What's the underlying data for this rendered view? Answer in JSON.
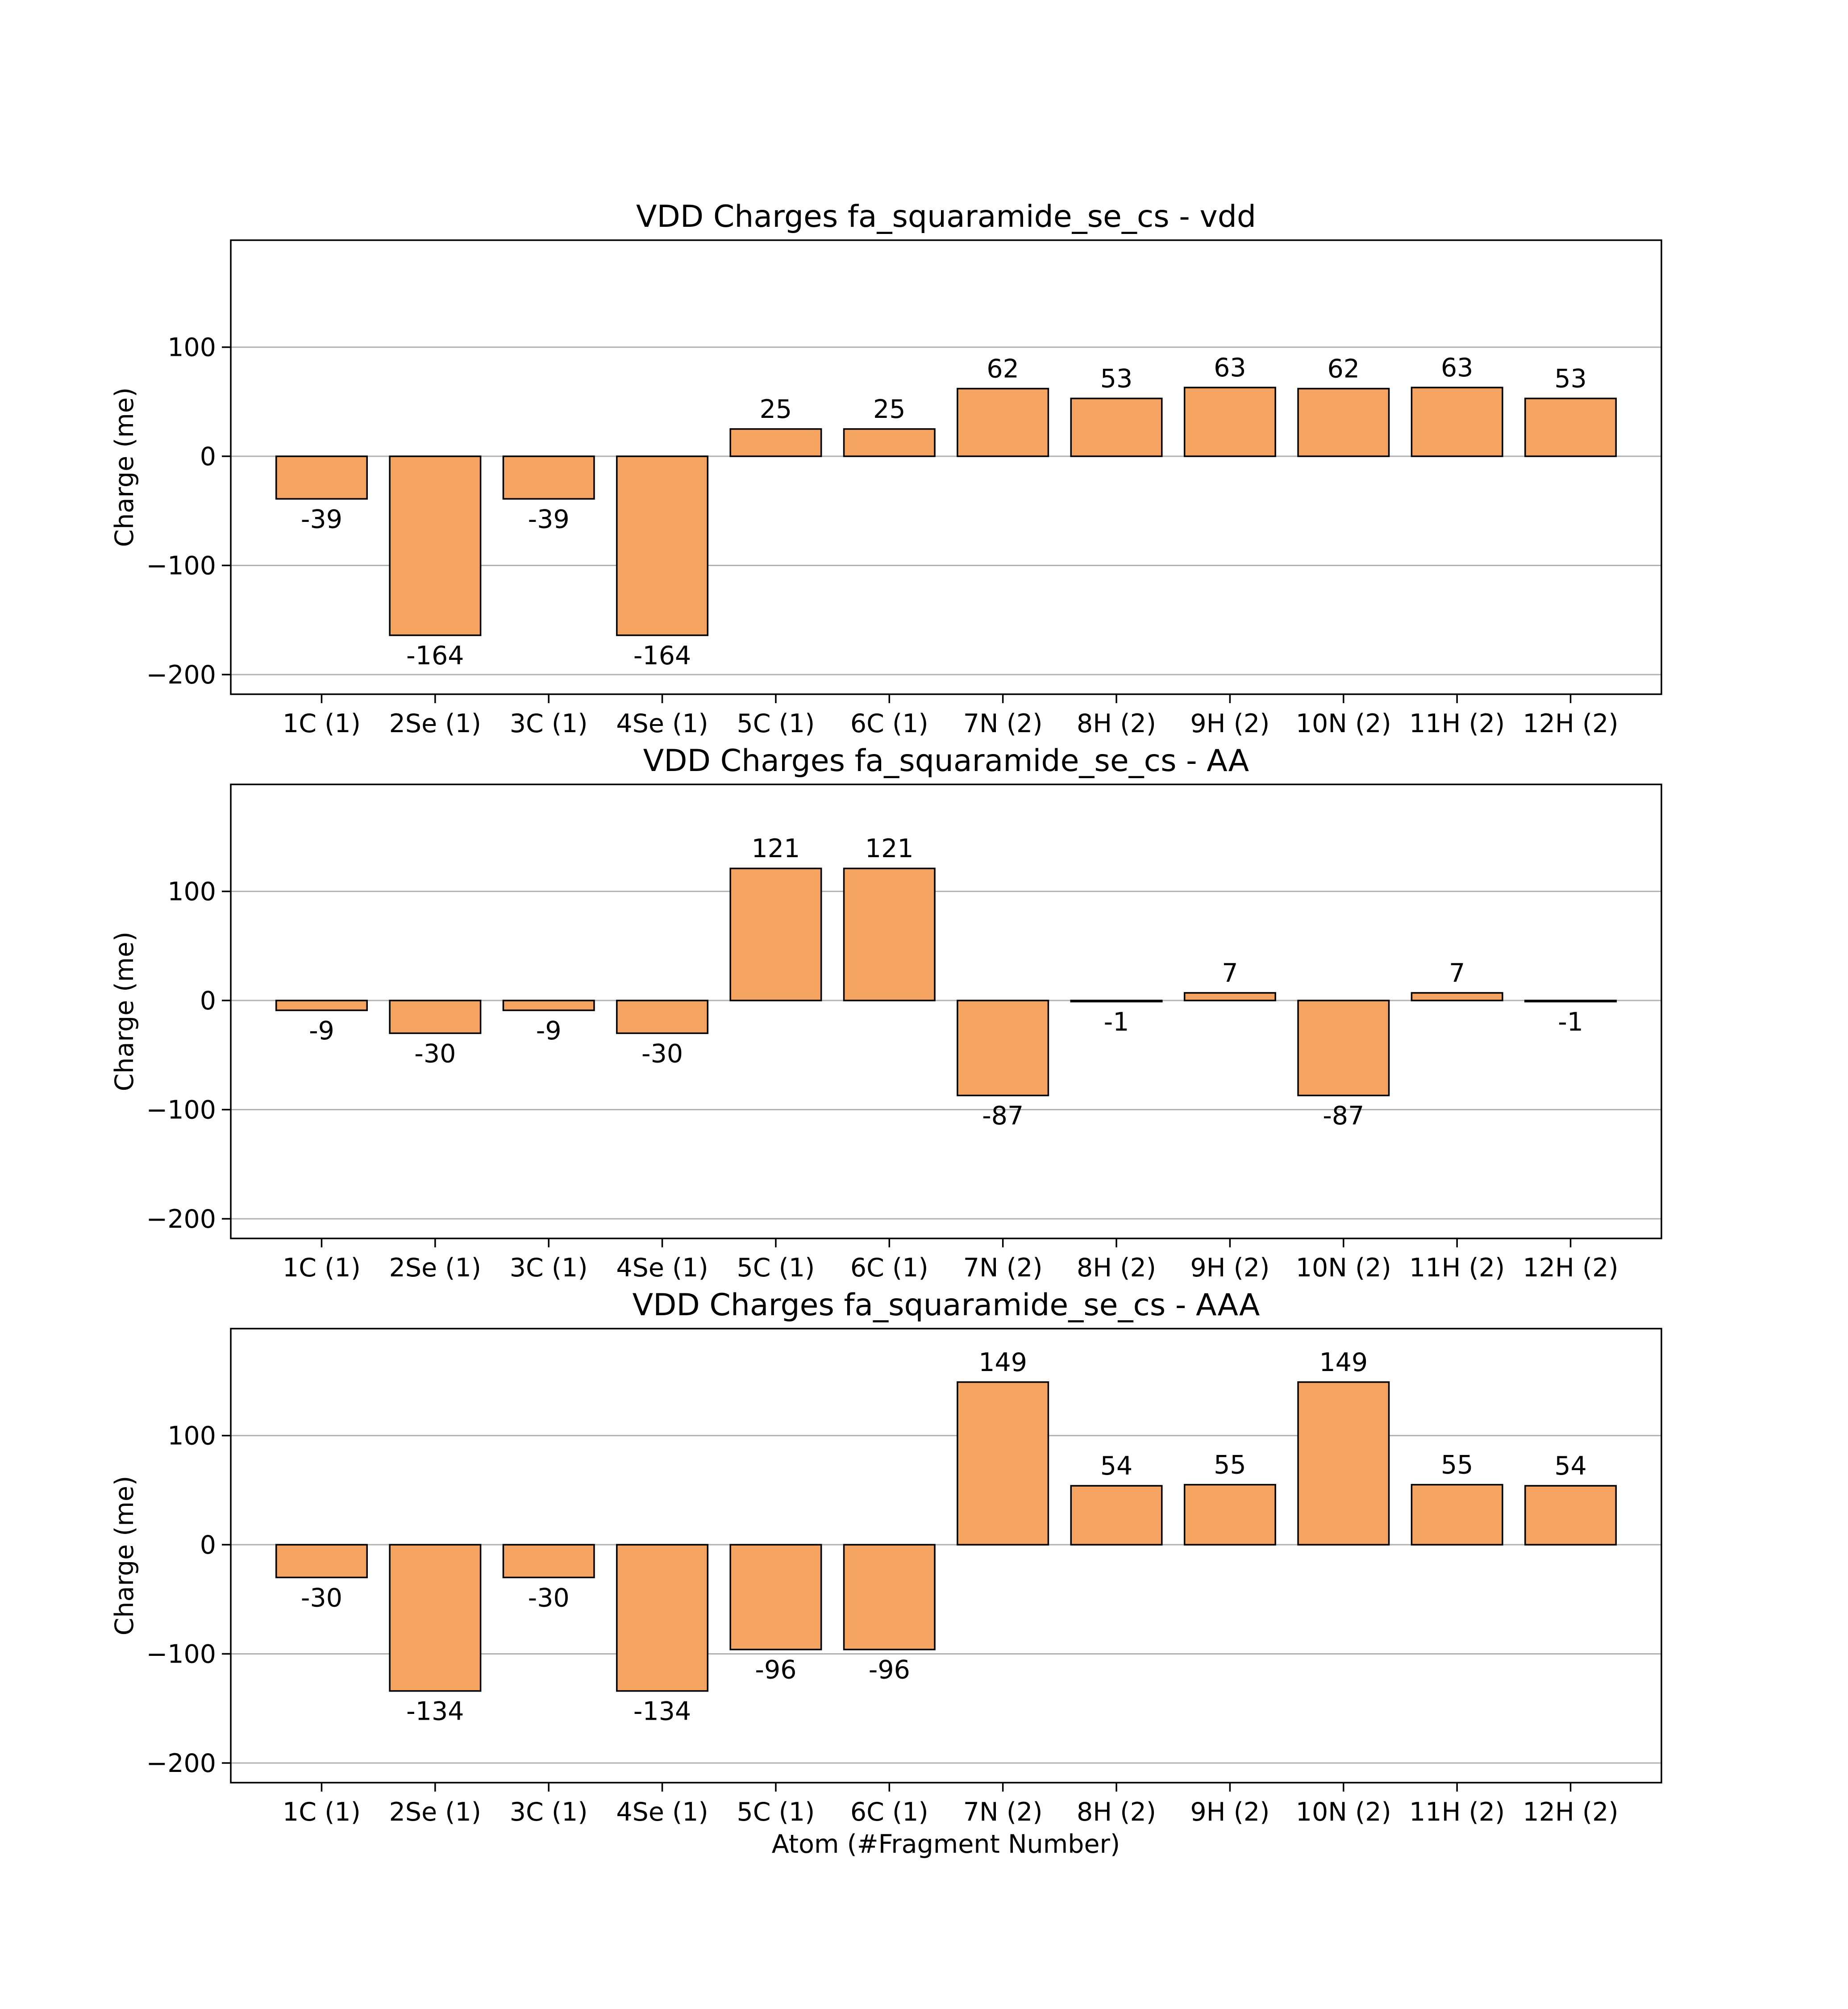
{
  "figure": {
    "xlabel": "Atom (#Fragment Number)"
  },
  "chart_data": [
    {
      "type": "bar",
      "title": "VDD Charges fa_squaramide_se_cs - vdd",
      "xlabel": "",
      "ylabel": "Charge (me)",
      "ylim": [
        -218,
        198
      ],
      "yticks": [
        -200,
        -100,
        0,
        100
      ],
      "ytick_labels": [
        "−200",
        "−100",
        "0",
        "100"
      ],
      "grid": "horizontal",
      "bar_color": "#f4a460",
      "categories": [
        "1C (1)",
        "2Se (1)",
        "3C (1)",
        "4Se (1)",
        "5C (1)",
        "6C (1)",
        "7N (2)",
        "8H (2)",
        "9H (2)",
        "10N (2)",
        "11H (2)",
        "12H (2)"
      ],
      "values": [
        -39,
        -164,
        -39,
        -164,
        25,
        25,
        62,
        53,
        63,
        62,
        63,
        53
      ],
      "value_labels": [
        "-39",
        "-164",
        "-39",
        "-164",
        "25",
        "25",
        "62",
        "53",
        "63",
        "62",
        "63",
        "53"
      ]
    },
    {
      "type": "bar",
      "title": "VDD Charges fa_squaramide_se_cs - AA",
      "xlabel": "",
      "ylabel": "Charge (me)",
      "ylim": [
        -218,
        198
      ],
      "yticks": [
        -200,
        -100,
        0,
        100
      ],
      "ytick_labels": [
        "−200",
        "−100",
        "0",
        "100"
      ],
      "grid": "horizontal",
      "bar_color": "#f4a460",
      "categories": [
        "1C (1)",
        "2Se (1)",
        "3C (1)",
        "4Se (1)",
        "5C (1)",
        "6C (1)",
        "7N (2)",
        "8H (2)",
        "9H (2)",
        "10N (2)",
        "11H (2)",
        "12H (2)"
      ],
      "values": [
        -9,
        -30,
        -9,
        -30,
        121,
        121,
        -87,
        -1,
        7,
        -87,
        7,
        -1
      ],
      "value_labels": [
        "-9",
        "-30",
        "-9",
        "-30",
        "121",
        "121",
        "-87",
        "-1",
        "7",
        "-87",
        "7",
        "-1"
      ]
    },
    {
      "type": "bar",
      "title": "VDD Charges fa_squaramide_se_cs - AAA",
      "xlabel": "Atom (#Fragment Number)",
      "ylabel": "Charge (me)",
      "ylim": [
        -218,
        198
      ],
      "yticks": [
        -200,
        -100,
        0,
        100
      ],
      "ytick_labels": [
        "−200",
        "−100",
        "0",
        "100"
      ],
      "grid": "horizontal",
      "bar_color": "#f4a460",
      "categories": [
        "1C (1)",
        "2Se (1)",
        "3C (1)",
        "4Se (1)",
        "5C (1)",
        "6C (1)",
        "7N (2)",
        "8H (2)",
        "9H (2)",
        "10N (2)",
        "11H (2)",
        "12H (2)"
      ],
      "values": [
        -30,
        -134,
        -30,
        -134,
        -96,
        -96,
        149,
        54,
        55,
        149,
        55,
        54
      ],
      "value_labels": [
        "-30",
        "-134",
        "-30",
        "-134",
        "-96",
        "-96",
        "149",
        "54",
        "55",
        "149",
        "55",
        "54"
      ]
    }
  ]
}
